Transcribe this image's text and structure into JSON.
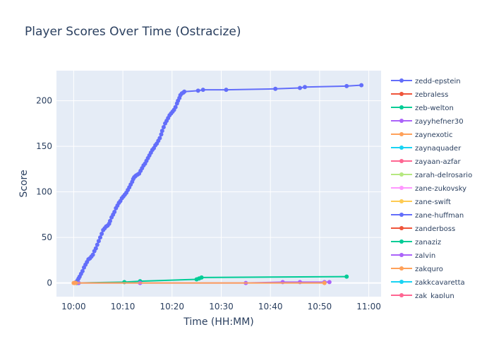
{
  "colors": {
    "plot_bg": "#e5ecf6",
    "grid": "#ffffff",
    "text": "#2a3f5f",
    "zeroline": "#ffffff"
  },
  "chart_data": {
    "type": "line",
    "title": "Player Scores Over Time (Ostracize)",
    "xlabel": "Time (HH:MM)",
    "ylabel": "Score",
    "x_unit": "minutes after 10:00",
    "xlim": [
      -3.5,
      62.5
    ],
    "ylim": [
      -15,
      233
    ],
    "x_ticks": [
      {
        "label": "10:00",
        "value": 0
      },
      {
        "label": "10:10",
        "value": 10
      },
      {
        "label": "10:20",
        "value": 20
      },
      {
        "label": "10:30",
        "value": 30
      },
      {
        "label": "10:40",
        "value": 40
      },
      {
        "label": "10:50",
        "value": 50
      },
      {
        "label": "11:00",
        "value": 60
      }
    ],
    "y_ticks": [
      {
        "label": "0",
        "value": 0
      },
      {
        "label": "50",
        "value": 50
      },
      {
        "label": "100",
        "value": 100
      },
      {
        "label": "150",
        "value": 150
      },
      {
        "label": "200",
        "value": 200
      }
    ],
    "grid": true,
    "legend_position": "right",
    "series": [
      {
        "name": "zedd-epstein",
        "color": "#636efa",
        "points": [
          [
            0.5,
            1
          ],
          [
            0.8,
            3
          ],
          [
            1.0,
            5
          ],
          [
            1.2,
            7
          ],
          [
            1.5,
            10
          ],
          [
            1.8,
            13
          ],
          [
            2.1,
            17
          ],
          [
            2.4,
            20
          ],
          [
            2.7,
            23
          ],
          [
            3.0,
            26
          ],
          [
            3.3,
            27
          ],
          [
            3.6,
            29
          ],
          [
            3.9,
            31
          ],
          [
            4.2,
            35
          ],
          [
            4.5,
            38
          ],
          [
            4.8,
            42
          ],
          [
            5.1,
            46
          ],
          [
            5.4,
            50
          ],
          [
            5.7,
            54
          ],
          [
            6.0,
            58
          ],
          [
            6.3,
            60
          ],
          [
            6.6,
            62
          ],
          [
            6.9,
            63
          ],
          [
            7.2,
            65
          ],
          [
            7.4,
            68
          ],
          [
            7.7,
            72
          ],
          [
            8.0,
            75
          ],
          [
            8.3,
            78
          ],
          [
            8.6,
            82
          ],
          [
            8.9,
            85
          ],
          [
            9.2,
            88
          ],
          [
            9.5,
            90
          ],
          [
            9.8,
            93
          ],
          [
            10.1,
            95
          ],
          [
            10.4,
            97
          ],
          [
            10.7,
            99
          ],
          [
            11.0,
            102
          ],
          [
            11.3,
            105
          ],
          [
            11.6,
            108
          ],
          [
            11.9,
            111
          ],
          [
            12.1,
            114
          ],
          [
            12.3,
            116
          ],
          [
            12.5,
            117
          ],
          [
            12.7,
            118
          ],
          [
            13.0,
            119
          ],
          [
            13.3,
            120
          ],
          [
            13.6,
            123
          ],
          [
            13.9,
            126
          ],
          [
            14.2,
            129
          ],
          [
            14.5,
            131
          ],
          [
            14.8,
            134
          ],
          [
            15.1,
            137
          ],
          [
            15.4,
            140
          ],
          [
            15.7,
            143
          ],
          [
            16.0,
            146
          ],
          [
            16.3,
            148
          ],
          [
            16.6,
            151
          ],
          [
            16.9,
            153
          ],
          [
            17.2,
            156
          ],
          [
            17.5,
            159
          ],
          [
            17.8,
            163
          ],
          [
            18.0,
            167
          ],
          [
            18.3,
            171
          ],
          [
            18.6,
            175
          ],
          [
            18.9,
            178
          ],
          [
            19.2,
            181
          ],
          [
            19.5,
            184
          ],
          [
            19.8,
            186
          ],
          [
            20.1,
            188
          ],
          [
            20.4,
            190
          ],
          [
            20.7,
            193
          ],
          [
            21.0,
            197
          ],
          [
            21.2,
            200
          ],
          [
            21.5,
            203
          ],
          [
            21.7,
            206
          ],
          [
            22.0,
            208
          ],
          [
            22.3,
            209
          ],
          [
            22.5,
            210
          ],
          [
            25.3,
            211
          ],
          [
            26.3,
            212
          ],
          [
            31.0,
            212
          ],
          [
            41.0,
            213
          ],
          [
            46.0,
            214
          ],
          [
            47.0,
            215
          ],
          [
            55.5,
            216
          ],
          [
            58.5,
            217
          ]
        ]
      },
      {
        "name": "zebraless",
        "color": "#ef553b",
        "points": [
          [
            0.2,
            0
          ],
          [
            0.6,
            0
          ]
        ]
      },
      {
        "name": "zeb-welton",
        "color": "#00cc96",
        "points": [
          [
            0.6,
            0
          ],
          [
            1.0,
            0
          ],
          [
            10.3,
            1
          ],
          [
            13.5,
            2
          ],
          [
            25.0,
            4
          ],
          [
            25.5,
            5
          ],
          [
            26.0,
            6
          ],
          [
            55.5,
            7
          ]
        ]
      },
      {
        "name": "zayyhefner30",
        "color": "#ab63fa",
        "points": [
          [
            1.0,
            0
          ],
          [
            13.5,
            0
          ],
          [
            35.0,
            0
          ],
          [
            42.5,
            1
          ],
          [
            46.0,
            1
          ],
          [
            51.0,
            1
          ],
          [
            52.0,
            1
          ]
        ]
      },
      {
        "name": "zaynexotic",
        "color": "#ffa15a",
        "points": [
          [
            0.0,
            0
          ],
          [
            0.4,
            0
          ],
          [
            51.0,
            0
          ]
        ]
      }
    ],
    "legend_entries": [
      {
        "name": "zedd-epstein",
        "color": "#636efa"
      },
      {
        "name": "zebraless",
        "color": "#ef553b"
      },
      {
        "name": "zeb-welton",
        "color": "#00cc96"
      },
      {
        "name": "zayyhefner30",
        "color": "#ab63fa"
      },
      {
        "name": "zaynexotic",
        "color": "#ffa15a"
      },
      {
        "name": "zaynaquader",
        "color": "#19d3f3"
      },
      {
        "name": "zayaan-azfar",
        "color": "#ff6692"
      },
      {
        "name": "zarah-delrosario",
        "color": "#b6e880"
      },
      {
        "name": "zane-zukovsky",
        "color": "#ff97ff"
      },
      {
        "name": "zane-swift",
        "color": "#fecb52"
      },
      {
        "name": "zane-huffman",
        "color": "#636efa"
      },
      {
        "name": "zanderboss",
        "color": "#ef553b"
      },
      {
        "name": "zanaziz",
        "color": "#00cc96"
      },
      {
        "name": "zalvin",
        "color": "#ab63fa"
      },
      {
        "name": "zakquro",
        "color": "#ffa15a"
      },
      {
        "name": "zakkcavaretta",
        "color": "#19d3f3"
      },
      {
        "name": "zak_kaplun",
        "color": "#ff6692"
      }
    ]
  }
}
